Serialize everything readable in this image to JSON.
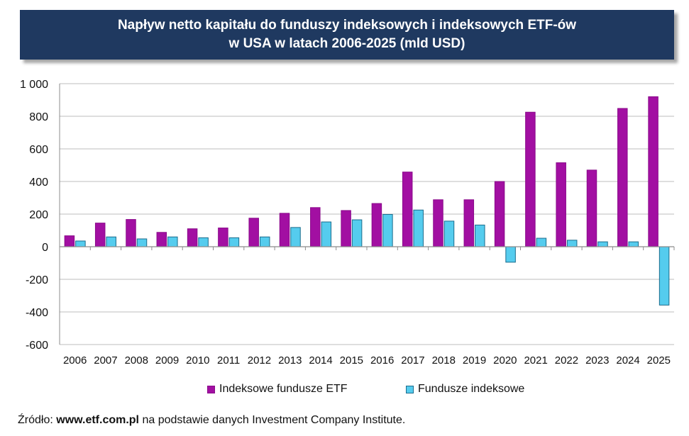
{
  "chart_data": {
    "type": "bar",
    "title": [
      "Napływ netto kapitału do funduszy indeksowych i indeksowych ETF-ów",
      "w USA w latach 2006-2025 (mld USD)"
    ],
    "xlabel": "",
    "ylabel": "",
    "ylim": [
      -600,
      1000
    ],
    "yticks": [
      1000,
      800,
      600,
      400,
      200,
      0,
      -200,
      -400,
      -600
    ],
    "ytick_labels": [
      "1 000",
      "800",
      "600",
      "400",
      "200",
      "0",
      "-200",
      "-400",
      "-600"
    ],
    "grid": true,
    "legend_position": "bottom",
    "categories": [
      "2006",
      "2007",
      "2008",
      "2009",
      "2010",
      "2011",
      "2012",
      "2013",
      "2014",
      "2015",
      "2016",
      "2017",
      "2018",
      "2019",
      "2020",
      "2021",
      "2022",
      "2023",
      "2024",
      "2025"
    ],
    "series": [
      {
        "name": "Indeksowe fundusze ETF",
        "color": "#a20fa2",
        "values": [
          67,
          145,
          167,
          88,
          110,
          115,
          175,
          205,
          240,
          222,
          265,
          458,
          288,
          288,
          400,
          825,
          515,
          470,
          848,
          920
        ]
      },
      {
        "name": "Fundusze indeksowe",
        "color": "#55ccee",
        "values": [
          35,
          60,
          48,
          60,
          55,
          55,
          60,
          118,
          152,
          165,
          198,
          225,
          157,
          133,
          -95,
          52,
          40,
          30,
          30,
          -358
        ]
      }
    ]
  },
  "source": {
    "prefix": "Źródło: ",
    "site": "www.etf.com.pl",
    "suffix": " na podstawie danych Investment Company Institute."
  }
}
